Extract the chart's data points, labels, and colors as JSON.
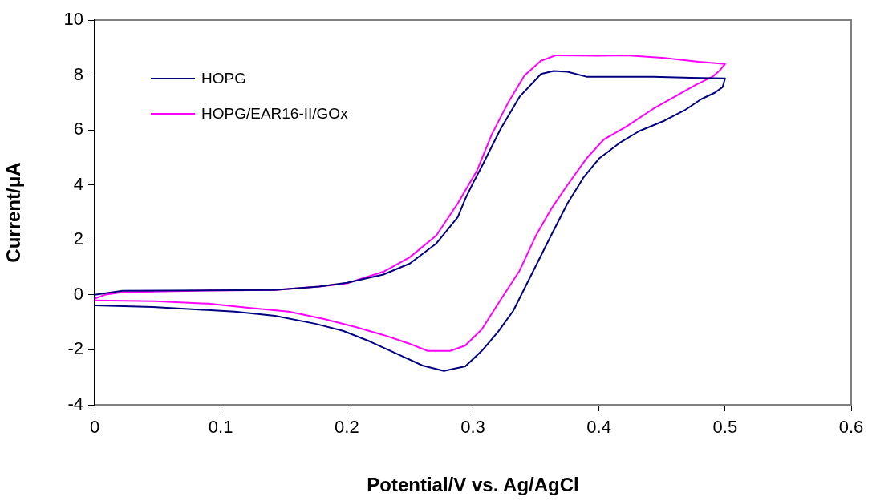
{
  "chart_data": {
    "type": "line",
    "xlabel": "Potential/V vs. Ag/AgCl",
    "ylabel": "Current/μA",
    "xlim": [
      0,
      0.6
    ],
    "xticks": [
      0,
      0.1,
      0.2,
      0.3,
      0.4,
      0.5,
      0.6
    ],
    "ylim": [
      -4,
      10
    ],
    "yticks": [
      -4,
      -2,
      0,
      2,
      4,
      6,
      8,
      10
    ],
    "grid": false,
    "legend": "top left",
    "marker": "none",
    "line_style": "solid",
    "series": [
      {
        "name": "HOPG",
        "color": "#000080",
        "x": [
          0,
          0.022,
          0.143,
          0.178,
          0.2,
          0.229,
          0.25,
          0.271,
          0.288,
          0.294,
          0.3,
          0.307,
          0.322,
          0.337,
          0.354,
          0.364,
          0.375,
          0.39,
          0.443,
          0.473,
          0.5,
          0.498,
          0.492,
          0.481,
          0.468,
          0.452,
          0.432,
          0.417,
          0.4,
          0.388,
          0.375,
          0.362,
          0.347,
          0.332,
          0.32,
          0.307,
          0.294,
          0.277,
          0.26,
          0.239,
          0.218,
          0.197,
          0.175,
          0.143,
          0.111,
          0.08,
          0.046,
          0
        ],
        "values": [
          0,
          0.15,
          0.18,
          0.3,
          0.44,
          0.74,
          1.14,
          1.87,
          2.83,
          3.5,
          4.06,
          4.67,
          6.04,
          7.21,
          8.04,
          8.15,
          8.12,
          7.94,
          7.94,
          7.9,
          7.88,
          7.56,
          7.36,
          7.12,
          6.72,
          6.34,
          5.96,
          5.55,
          4.96,
          4.29,
          3.33,
          2.16,
          0.79,
          -0.58,
          -1.34,
          -2.04,
          -2.6,
          -2.77,
          -2.57,
          -2.13,
          -1.69,
          -1.31,
          -1.05,
          -0.76,
          -0.61,
          -0.53,
          -0.44,
          -0.38
        ]
      },
      {
        "name": "HOPG/EAR16-II/GOx",
        "color": "#ff00ff",
        "x": [
          0,
          0.008,
          0.022,
          0.08,
          0.143,
          0.178,
          0.2,
          0.229,
          0.25,
          0.271,
          0.288,
          0.294,
          0.303,
          0.315,
          0.328,
          0.341,
          0.354,
          0.366,
          0.4,
          0.422,
          0.452,
          0.479,
          0.5,
          0.496,
          0.49,
          0.477,
          0.46,
          0.443,
          0.422,
          0.404,
          0.39,
          0.375,
          0.362,
          0.35,
          0.337,
          0.322,
          0.307,
          0.294,
          0.282,
          0.264,
          0.25,
          0.229,
          0.207,
          0.182,
          0.154,
          0.122,
          0.09,
          0.048,
          0
        ],
        "values": [
          -0.14,
          0,
          0.1,
          0.15,
          0.18,
          0.3,
          0.42,
          0.84,
          1.37,
          2.16,
          3.33,
          3.8,
          4.5,
          5.84,
          7.0,
          7.99,
          8.52,
          8.72,
          8.7,
          8.72,
          8.62,
          8.48,
          8.4,
          8.18,
          7.94,
          7.65,
          7.21,
          6.77,
          6.13,
          5.66,
          4.96,
          4.0,
          3.12,
          2.16,
          0.88,
          -0.18,
          -1.26,
          -1.84,
          -2.04,
          -2.04,
          -1.78,
          -1.46,
          -1.17,
          -0.88,
          -0.61,
          -0.47,
          -0.32,
          -0.23,
          -0.2
        ]
      }
    ]
  }
}
